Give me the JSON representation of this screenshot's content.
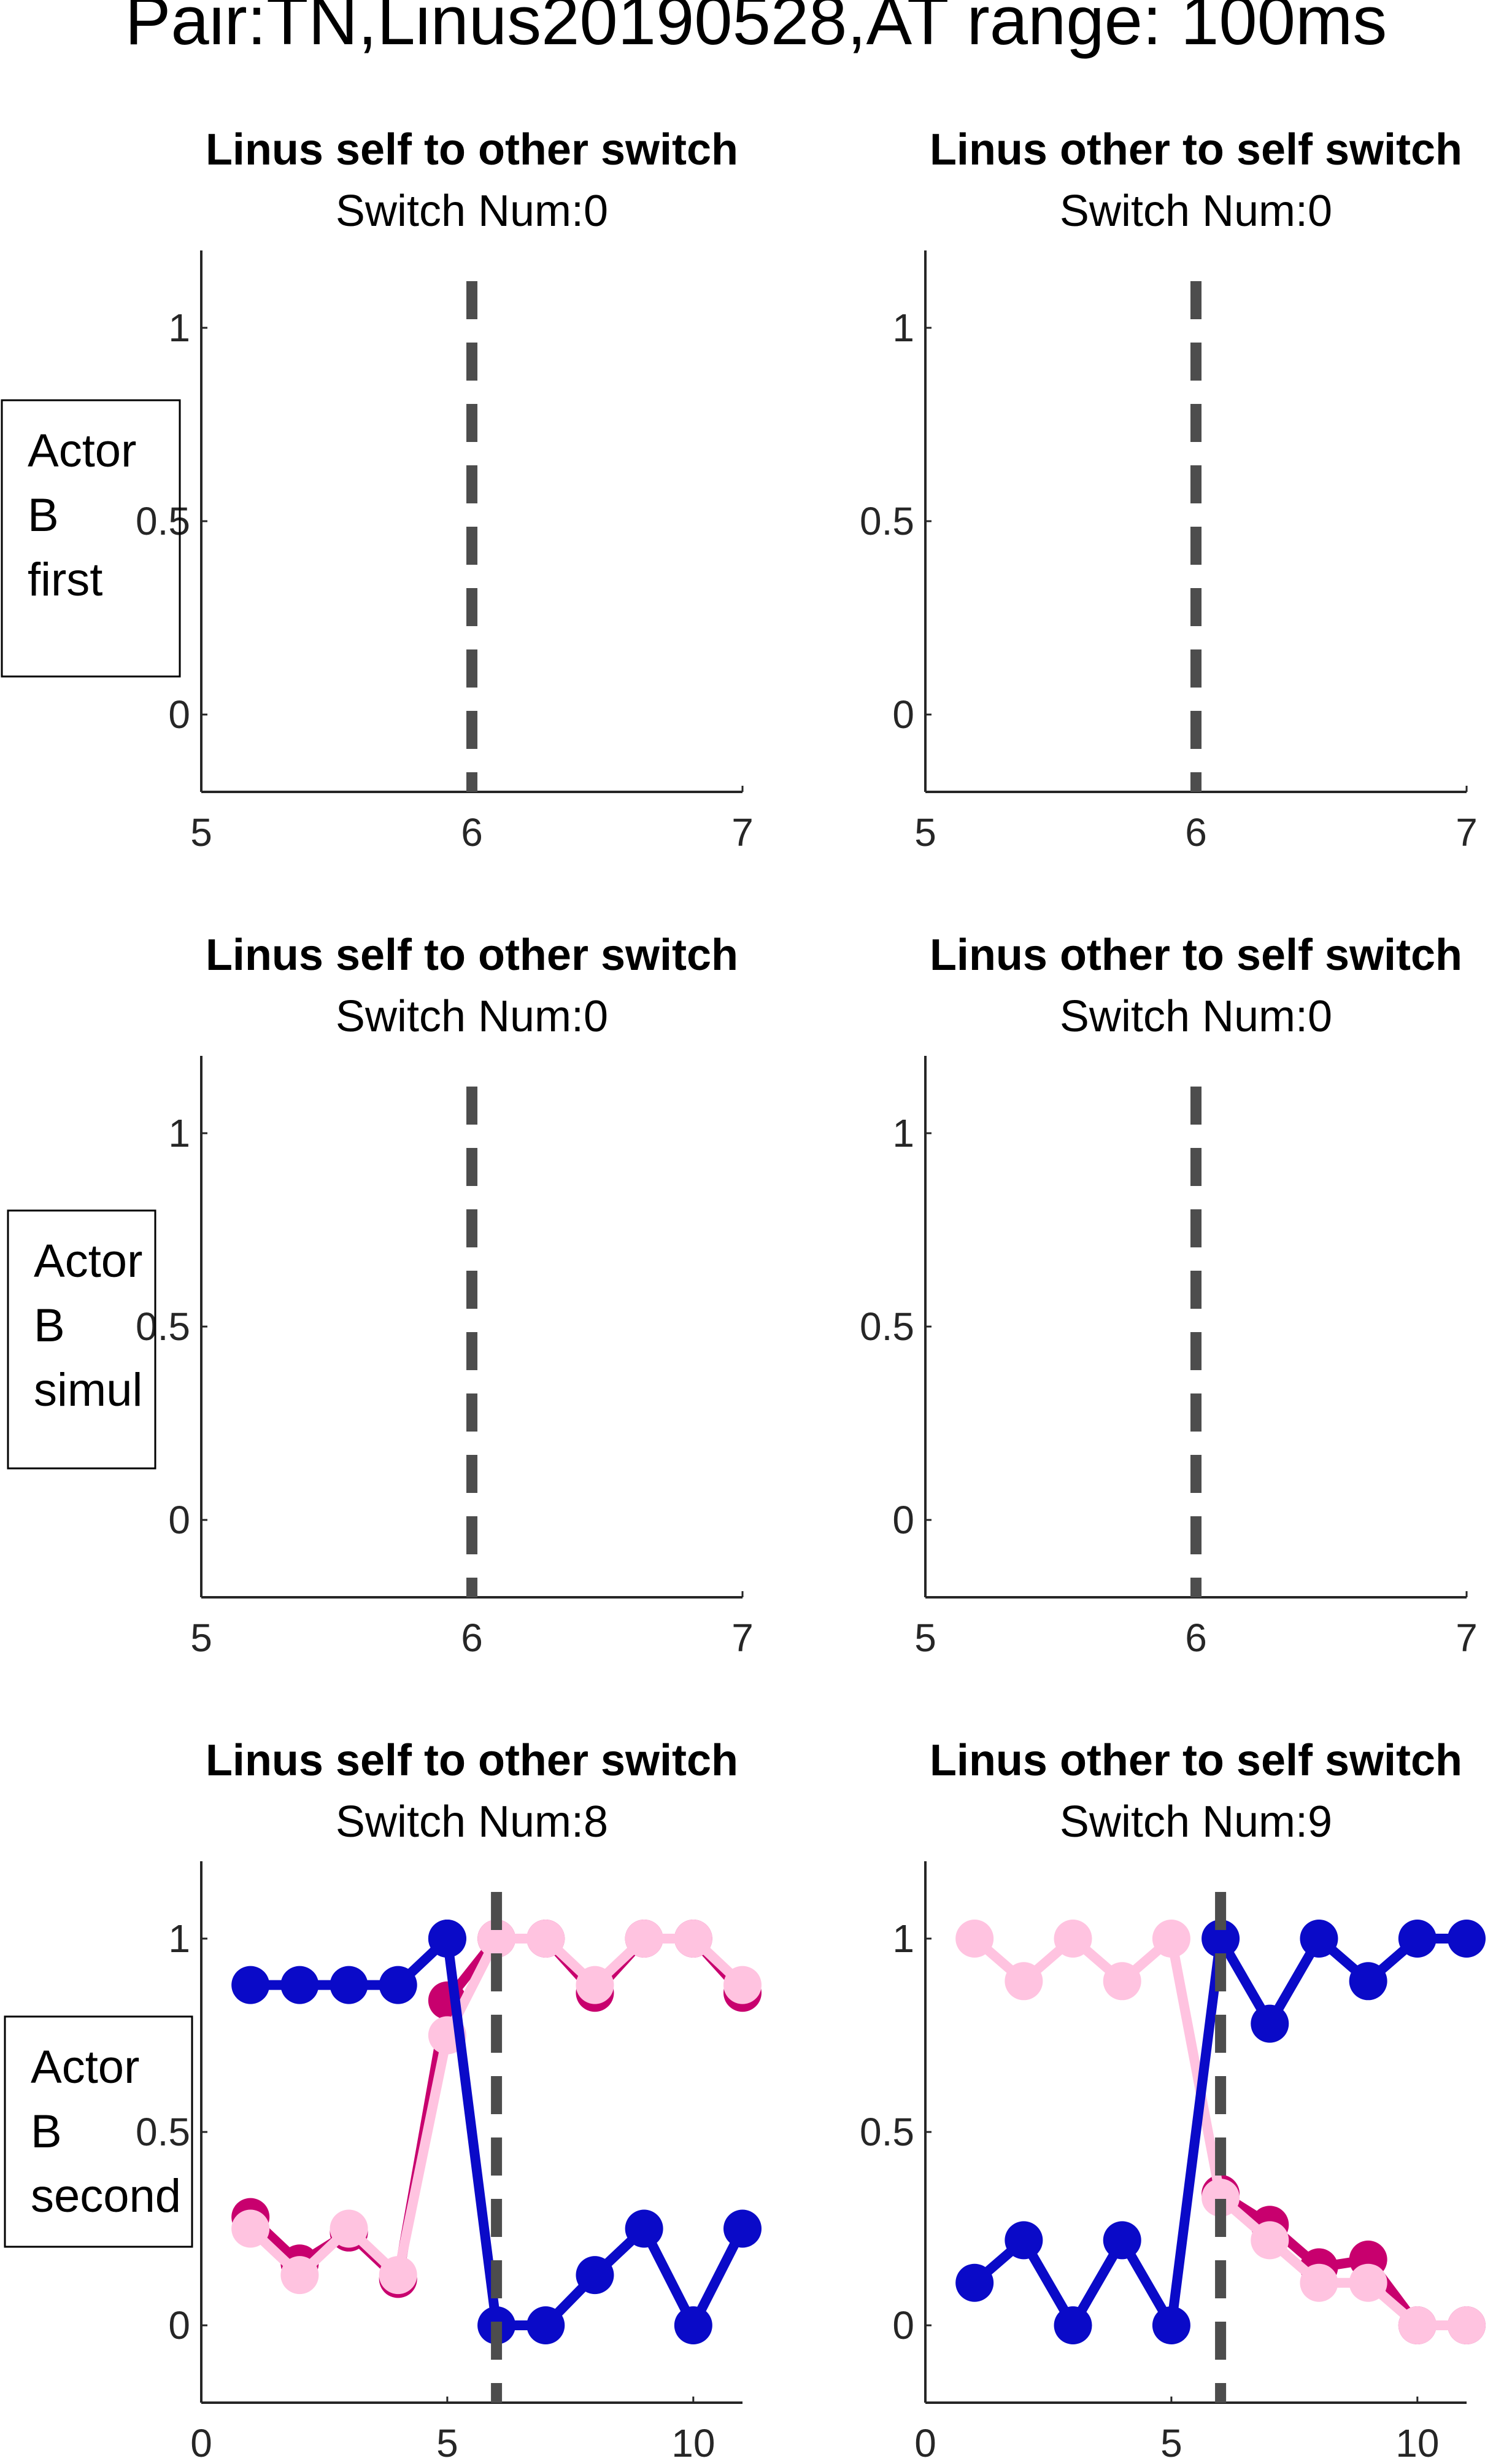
{
  "figure": {
    "title": "Pair:TN,Linus20190528,AT range: 100ms",
    "row_labels": [
      [
        "Actor",
        "B",
        "first"
      ],
      [
        "Actor",
        "B",
        "simul"
      ],
      [
        "Actor",
        "B",
        "second"
      ]
    ]
  },
  "colors": {
    "magenta": "#c8006e",
    "pink": "#ffc3e0",
    "blue": "#0a0ac8",
    "dash": "#4d4d4d",
    "axis": "#262626"
  },
  "chart_data": [
    {
      "type": "line",
      "title": "Linus self to other switch",
      "subtitle": "Switch Num:0",
      "xlim": [
        5,
        7
      ],
      "ylim": [
        -0.2,
        1.2
      ],
      "xticks": [
        5,
        6,
        7
      ],
      "yticks": [
        0,
        0.5,
        1
      ],
      "switch_x": 6,
      "series": []
    },
    {
      "type": "line",
      "title": "Linus other to self switch",
      "subtitle": "Switch Num:0",
      "xlim": [
        5,
        7
      ],
      "ylim": [
        -0.2,
        1.2
      ],
      "xticks": [
        5,
        6,
        7
      ],
      "yticks": [
        0,
        0.5,
        1
      ],
      "switch_x": 6,
      "series": []
    },
    {
      "type": "line",
      "title": "Linus self to other switch",
      "subtitle": "Switch Num:0",
      "xlim": [
        5,
        7
      ],
      "ylim": [
        -0.2,
        1.2
      ],
      "xticks": [
        5,
        6,
        7
      ],
      "yticks": [
        0,
        0.5,
        1
      ],
      "switch_x": 6,
      "series": []
    },
    {
      "type": "line",
      "title": "Linus other to self switch",
      "subtitle": "Switch Num:0",
      "xlim": [
        5,
        7
      ],
      "ylim": [
        -0.2,
        1.2
      ],
      "xticks": [
        5,
        6,
        7
      ],
      "yticks": [
        0,
        0.5,
        1
      ],
      "switch_x": 6,
      "series": []
    },
    {
      "type": "line",
      "title": "Linus self to other switch",
      "subtitle": "Switch Num:8",
      "xlim": [
        0,
        11
      ],
      "ylim": [
        -0.2,
        1.2
      ],
      "xticks": [
        0,
        5,
        10
      ],
      "yticks": [
        0,
        0.5,
        1
      ],
      "switch_x": 6,
      "series": [
        {
          "color": "magenta",
          "x": [
            1,
            2,
            3,
            4,
            5,
            6,
            7,
            8,
            9,
            10,
            11
          ],
          "values": [
            0.28,
            0.16,
            0.24,
            0.12,
            0.84,
            1.0,
            1.0,
            0.86,
            1.0,
            1.0,
            0.86
          ]
        },
        {
          "color": "pink",
          "x": [
            1,
            2,
            3,
            4,
            5,
            6,
            7,
            8,
            9,
            10,
            11
          ],
          "values": [
            0.25,
            0.13,
            0.25,
            0.13,
            0.75,
            1.0,
            1.0,
            0.88,
            1.0,
            1.0,
            0.88
          ]
        },
        {
          "color": "blue",
          "x": [
            1,
            2,
            3,
            4,
            5
          ],
          "values": [
            0.88,
            0.88,
            0.88,
            0.88,
            1.0
          ]
        },
        {
          "color": "blue",
          "x": [
            5,
            6,
            7,
            8,
            9,
            10,
            11
          ],
          "values": [
            1.0,
            0.0,
            0.0,
            0.13,
            0.25,
            0.0,
            0.25
          ]
        }
      ]
    },
    {
      "type": "line",
      "title": "Linus other to self switch",
      "subtitle": "Switch Num:9",
      "xlim": [
        0,
        11
      ],
      "ylim": [
        -0.2,
        1.2
      ],
      "xticks": [
        0,
        5,
        10
      ],
      "yticks": [
        0,
        0.5,
        1
      ],
      "switch_x": 6,
      "series": [
        {
          "color": "magenta",
          "x": [
            6,
            7,
            8,
            9,
            10,
            11
          ],
          "values": [
            0.34,
            0.26,
            0.15,
            0.17,
            0.0,
            0.0
          ]
        },
        {
          "color": "pink",
          "x": [
            1,
            2,
            3,
            4,
            5,
            6,
            7,
            8,
            9,
            10,
            11
          ],
          "values": [
            1.0,
            0.89,
            1.0,
            0.89,
            1.0,
            0.33,
            0.22,
            0.11,
            0.11,
            0.0,
            0.0
          ]
        },
        {
          "color": "blue",
          "x": [
            1,
            2,
            3,
            4,
            5,
            6,
            7,
            8,
            9,
            10,
            11
          ],
          "values": [
            0.11,
            0.22,
            0.0,
            0.22,
            0.0,
            1.0,
            0.78,
            1.0,
            0.89,
            1.0,
            1.0
          ]
        }
      ]
    }
  ]
}
